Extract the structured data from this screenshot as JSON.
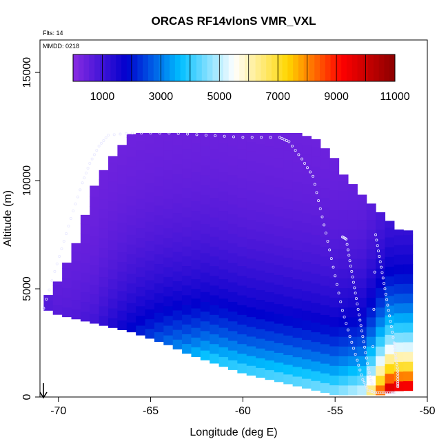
{
  "chart_data": {
    "type": "heatmap",
    "title": "ORCAS RF14vlonS VMR_VXL",
    "annotations": [
      "Flts: 14",
      "MMDD: 0218"
    ],
    "xlabel": "Longitude (deg E)",
    "ylabel": "Altitude (m)",
    "xlim": [
      -71,
      -50
    ],
    "ylim": [
      0,
      16500
    ],
    "xticks": [
      -70,
      -65,
      -60,
      -55,
      -50
    ],
    "yticks": [
      0,
      5000,
      10000,
      15000
    ],
    "legend": {
      "placement": "top",
      "range": [
        0,
        11000
      ],
      "ticks": [
        1000,
        3000,
        5000,
        7000,
        9000,
        11000
      ],
      "colors": [
        "#8a2be2",
        "#0000cd",
        "#00bfff",
        "#ffffff",
        "#ffd700",
        "#ff0000",
        "#8b0000"
      ]
    },
    "field": {
      "x": [
        -70.8,
        -70,
        -69,
        -68,
        -67,
        -66,
        -65,
        -64,
        -63,
        -62,
        -61,
        -60,
        -59,
        -58,
        -57,
        -56,
        -55,
        -54.5,
        -54,
        -53.5,
        -53,
        -52.5,
        -52,
        -51.5
      ],
      "top": [
        4400,
        5400,
        7200,
        9900,
        11200,
        12200,
        12200,
        12200,
        12200,
        12200,
        12200,
        12200,
        12200,
        12200,
        12200,
        11900,
        11000,
        10200,
        9800,
        9300,
        8900,
        8500,
        8100,
        7700
      ],
      "bottom": [
        4100,
        3800,
        3600,
        3400,
        3200,
        3000,
        2700,
        2400,
        2000,
        1700,
        1400,
        1100,
        900,
        700,
        500,
        300,
        100,
        100,
        100,
        100,
        100,
        100,
        200,
        300
      ],
      "vmr_surface": [
        800,
        700,
        800,
        1000,
        1500,
        2000,
        2500,
        3000,
        3500,
        4000,
        4200,
        4300,
        4400,
        4500,
        4600,
        4700,
        4800,
        5000,
        5200,
        5400,
        7000,
        9000,
        10500,
        10000
      ],
      "vmr_aloft": 300,
      "scale_height_m": 3000
    },
    "flight_tracks": [
      {
        "lon": [
          -70.8,
          -70.2,
          -69.7,
          -69.2,
          -68.7,
          -68.3,
          -67.8,
          -67.3,
          -66,
          -64,
          -62,
          -60,
          -58,
          -57.5,
          -56.8,
          -56.2,
          -55.8,
          -55.4,
          -55.0,
          -54.6,
          -54.2,
          -53.8,
          -53.5,
          -53.2,
          -52.8,
          -52.4,
          -52.0,
          -51.7
        ],
        "alt": [
          4100,
          5800,
          7200,
          8600,
          9900,
          10800,
          11600,
          12100,
          12200,
          12200,
          12100,
          12000,
          12000,
          11800,
          11000,
          10200,
          8700,
          7200,
          5600,
          4000,
          2800,
          1700,
          800,
          300,
          200,
          200,
          200,
          200
        ]
      },
      {
        "lon": [
          -54.6,
          -54.4,
          -54.2,
          -54.0,
          -53.8,
          -53.6,
          -53.4,
          -53.2,
          -53.0,
          -52.8,
          -52.6,
          -52.4,
          -52.2,
          -52.0,
          -51.8,
          -51.7,
          -51.6,
          -51.6,
          -51.6
        ],
        "alt": [
          7400,
          7300,
          6300,
          5300,
          4300,
          3300,
          2300,
          1300,
          600,
          7500,
          6500,
          5500,
          4500,
          3500,
          2500,
          1800,
          1200,
          700,
          400
        ]
      }
    ]
  }
}
